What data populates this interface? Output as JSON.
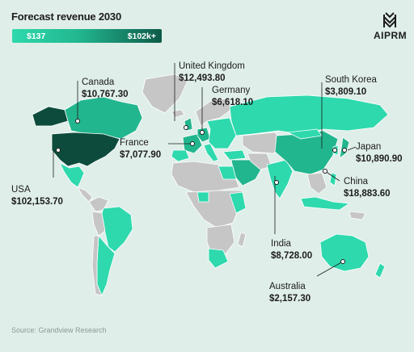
{
  "title": "Forecast revenue 2030",
  "legend": {
    "min": "$137",
    "max": "$102k+",
    "colors": [
      "#2ed9ad",
      "#0d5a48"
    ]
  },
  "brand": {
    "name": "AIPRM"
  },
  "source": "Source: Grandview Research",
  "colors": {
    "ocean": "#dfeee9",
    "no_data": "#c6c6c6",
    "low": "#2ed9ad",
    "mid": "#22b68e",
    "high": "#17876b",
    "top": "#0d4c3d"
  },
  "countries": [
    {
      "name": "Canada",
      "value": "$10,767.30"
    },
    {
      "name": "United Kingdom",
      "value": "$12,493.80"
    },
    {
      "name": "Germany",
      "value": "$6,618.10"
    },
    {
      "name": "South Korea",
      "value": "$3,809.10"
    },
    {
      "name": "France",
      "value": "$7,077.90"
    },
    {
      "name": "Japan",
      "value": "$10,890.90"
    },
    {
      "name": "USA",
      "value": "$102,153.70"
    },
    {
      "name": "China",
      "value": "$18,883.60"
    },
    {
      "name": "India",
      "value": "$8,728.00"
    },
    {
      "name": "Australia",
      "value": "$2,157.30"
    }
  ]
}
